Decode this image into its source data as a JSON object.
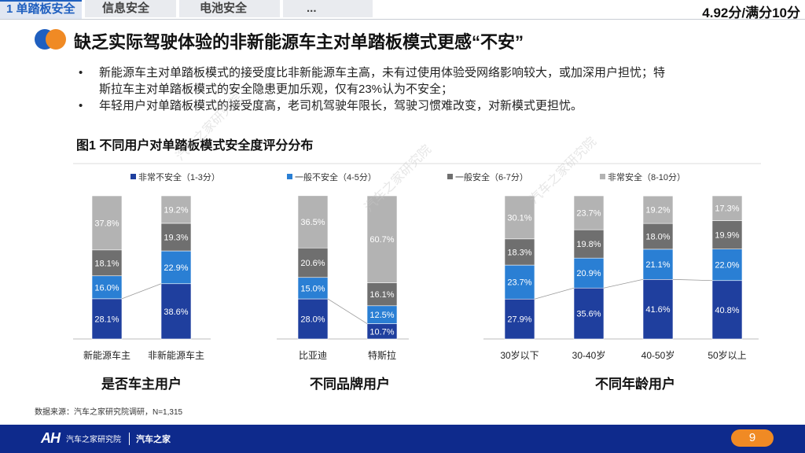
{
  "tabs": [
    {
      "label": "1 单踏板安全"
    },
    {
      "label": "信息安全"
    },
    {
      "label": "电池安全"
    },
    {
      "label": "..."
    }
  ],
  "score": "4.92分/满分10分",
  "headline": "缺乏实际驾驶体验的非新能源车主对单踏板模式更感“不安”",
  "bullets": [
    {
      "dot": "•",
      "line1": "新能源车主对单踏板模式的接受度比非新能源车主高，未有过使用体验受网络影响较大，或加深用户担忧；特",
      "line2": "斯拉车主对单踏板模式的安全隐患更加乐观，仅有23%认为不安全；"
    },
    {
      "dot": "•",
      "line1": "年轻用户对单踏板模式的接受度高，老司机驾驶年限长，驾驶习惯难改变，对新模式更担忧。",
      "line2": ""
    }
  ],
  "figure_title": "图1 不同用户对单踏板模式安全度评分分布",
  "colors": {
    "very_unsafe": "#1f3f9e",
    "unsafe": "#2a7fd4",
    "safe": "#6f6f6f",
    "very_safe": "#b3b3b3",
    "accent": "#f08a24",
    "footer": "#0e2a8c"
  },
  "chart_data": {
    "type": "bar",
    "stacked": true,
    "unit": "%",
    "legend": [
      {
        "name": "非常不安全（1-3分）",
        "color": "#1f3f9e"
      },
      {
        "name": "一般不安全（4-5分）",
        "color": "#2a7fd4"
      },
      {
        "name": "一般安全（6-7分）",
        "color": "#6f6f6f"
      },
      {
        "name": "非常安全（8-10分）",
        "color": "#b3b3b3"
      }
    ],
    "groups": [
      {
        "title": "是否车主用户",
        "categories": [
          "新能源车主",
          "非新能源车主"
        ],
        "series": [
          {
            "name": "非常不安全（1-3分）",
            "values": [
              28.1,
              38.6
            ]
          },
          {
            "name": "一般不安全（4-5分）",
            "values": [
              16.0,
              22.9
            ]
          },
          {
            "name": "一般安全（6-7分）",
            "values": [
              18.1,
              19.3
            ]
          },
          {
            "name": "非常安全（8-10分）",
            "values": [
              37.8,
              19.2
            ]
          }
        ]
      },
      {
        "title": "不同品牌用户",
        "categories": [
          "比亚迪",
          "特斯拉"
        ],
        "series": [
          {
            "name": "非常不安全（1-3分）",
            "values": [
              28.0,
              10.7
            ]
          },
          {
            "name": "一般不安全（4-5分）",
            "values": [
              15.0,
              12.5
            ]
          },
          {
            "name": "一般安全（6-7分）",
            "values": [
              20.6,
              16.1
            ]
          },
          {
            "name": "非常安全（8-10分）",
            "values": [
              36.5,
              60.7
            ]
          }
        ]
      },
      {
        "title": "不同年龄用户",
        "categories": [
          "30岁以下",
          "30-40岁",
          "40-50岁",
          "50岁以上"
        ],
        "series": [
          {
            "name": "非常不安全（1-3分）",
            "values": [
              27.9,
              35.6,
              41.6,
              40.8
            ]
          },
          {
            "name": "一般不安全（4-5分）",
            "values": [
              23.7,
              20.9,
              21.1,
              22.0
            ]
          },
          {
            "name": "一般安全（6-7分）",
            "values": [
              18.3,
              19.8,
              18.0,
              19.9
            ]
          },
          {
            "name": "非常安全（8-10分）",
            "values": [
              30.1,
              23.7,
              19.2,
              17.3
            ]
          }
        ]
      }
    ],
    "ylim": [
      0,
      100
    ]
  },
  "watermark": "汽车之家研究院",
  "source": "数据来源：汽车之家研究院调研，N=1,315",
  "footer": {
    "logo_mark": "AH",
    "logo_text": "汽车之家研究院",
    "brand": "汽车之家",
    "page": "9"
  }
}
